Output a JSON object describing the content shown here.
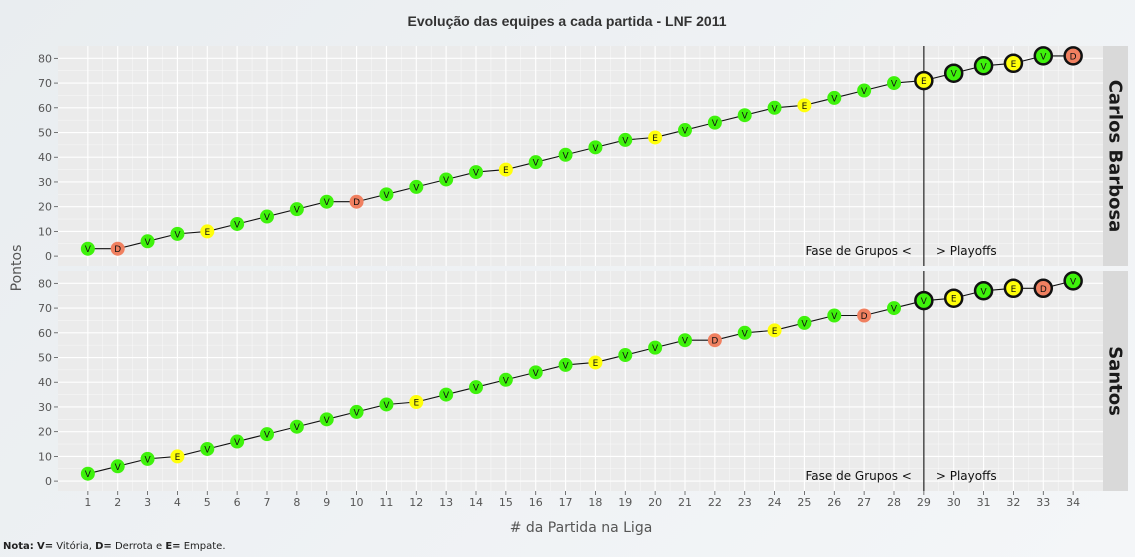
{
  "note": {
    "prefix": "Nota:",
    "v_key": "V=",
    "v_text": " Vitória, ",
    "d_key": "D=",
    "d_text": " Derrota e ",
    "e_key": "E=",
    "e_text": " Empate."
  },
  "colors": {
    "V": "#3ef20b",
    "D": "#f08060",
    "E": "#ffff0a",
    "panel": "#ebebeb",
    "strip": "#d9d9d9",
    "grid": "#ffffff"
  },
  "chart_data": {
    "type": "line",
    "title": "Evolução das equipes a cada partida - LNF 2011",
    "xlabel": "# da Partida na Liga",
    "ylabel": "Pontos",
    "x": [
      1,
      2,
      3,
      4,
      5,
      6,
      7,
      8,
      9,
      10,
      11,
      12,
      13,
      14,
      15,
      16,
      17,
      18,
      19,
      20,
      21,
      22,
      23,
      24,
      25,
      26,
      27,
      28,
      29,
      30,
      31,
      32,
      33,
      34
    ],
    "xlim": [
      0,
      35
    ],
    "ylim": [
      -4,
      85
    ],
    "yticks": [
      0,
      10,
      20,
      30,
      40,
      50,
      60,
      70,
      80
    ],
    "vline_x": 29,
    "annotations": {
      "left": "Fase de Grupos <",
      "right": "> Playoffs"
    },
    "playoffs_from": 29,
    "grid": true,
    "facets": [
      {
        "name": "Carlos Barbosa",
        "values": [
          3,
          3,
          6,
          9,
          10,
          13,
          16,
          19,
          22,
          22,
          25,
          28,
          31,
          34,
          35,
          38,
          41,
          44,
          47,
          48,
          51,
          54,
          57,
          60,
          61,
          64,
          67,
          70,
          71,
          74,
          77,
          78,
          81,
          81
        ],
        "results": [
          "V",
          "D",
          "V",
          "V",
          "E",
          "V",
          "V",
          "V",
          "V",
          "D",
          "V",
          "V",
          "V",
          "V",
          "E",
          "V",
          "V",
          "V",
          "V",
          "E",
          "V",
          "V",
          "V",
          "V",
          "E",
          "V",
          "V",
          "V",
          "E",
          "V",
          "V",
          "E",
          "V",
          "D"
        ]
      },
      {
        "name": "Santos",
        "values": [
          3,
          6,
          9,
          10,
          13,
          16,
          19,
          22,
          25,
          28,
          31,
          32,
          35,
          38,
          41,
          44,
          47,
          48,
          51,
          54,
          57,
          57,
          60,
          61,
          64,
          67,
          67,
          70,
          73,
          74,
          77,
          78,
          78,
          81
        ],
        "results": [
          "V",
          "V",
          "V",
          "E",
          "V",
          "V",
          "V",
          "V",
          "V",
          "V",
          "V",
          "E",
          "V",
          "V",
          "V",
          "V",
          "V",
          "E",
          "V",
          "V",
          "V",
          "D",
          "V",
          "E",
          "V",
          "V",
          "D",
          "V",
          "V",
          "E",
          "V",
          "E",
          "D",
          "V"
        ]
      }
    ]
  }
}
